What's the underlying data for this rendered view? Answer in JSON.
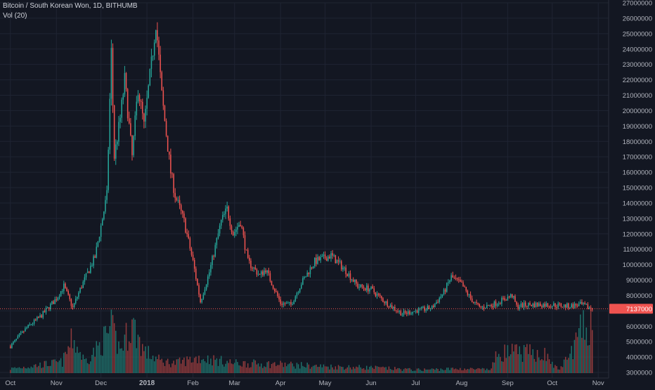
{
  "legend": {
    "symbol_line": "Bitcoin / South Korean Won, 1D, BITHUMB",
    "volume_line": "Vol (20)"
  },
  "colors": {
    "background": "#131722",
    "grid": "#1f2433",
    "axis_text": "#b2b5be",
    "up": "#26a69a",
    "down": "#ef5350",
    "price_line": "#ef5350",
    "up_volume": "#1f6f6a",
    "down_volume": "#8f3a3c"
  },
  "chart_data": {
    "type": "candlestick",
    "price_axis": {
      "min": 3000000,
      "max": 27000000,
      "ticks": [
        3000000,
        4000000,
        5000000,
        6000000,
        7000000,
        8000000,
        9000000,
        10000000,
        11000000,
        12000000,
        13000000,
        14000000,
        15000000,
        16000000,
        17000000,
        18000000,
        19000000,
        20000000,
        21000000,
        22000000,
        23000000,
        24000000,
        25000000,
        26000000,
        27000000
      ]
    },
    "time_axis": {
      "labels": [
        "Oct",
        "Nov",
        "Dec",
        "2018",
        "Feb",
        "Mar",
        "Apr",
        "May",
        "Jun",
        "Jul",
        "Aug",
        "Sep",
        "Oct",
        "Nov"
      ]
    },
    "last_price": 7137000,
    "last_price_label": "7137000",
    "grid": true,
    "price_path": [
      [
        "2017-10-01",
        4700000
      ],
      [
        "2017-10-12",
        5900000
      ],
      [
        "2017-10-22",
        6700000
      ],
      [
        "2017-11-01",
        7800000
      ],
      [
        "2017-11-06",
        8600000
      ],
      [
        "2017-11-12",
        7200000
      ],
      [
        "2017-11-17",
        8400000
      ],
      [
        "2017-11-27",
        10500000
      ],
      [
        "2017-12-01",
        12500000
      ],
      [
        "2017-12-05",
        14500000
      ],
      [
        "2017-12-08",
        23800000
      ],
      [
        "2017-12-10",
        17000000
      ],
      [
        "2017-12-14",
        19500000
      ],
      [
        "2017-12-17",
        22000000
      ],
      [
        "2017-12-22",
        17000000
      ],
      [
        "2017-12-26",
        21500000
      ],
      [
        "2017-12-30",
        19000000
      ],
      [
        "2018-01-04",
        23000000
      ],
      [
        "2018-01-07",
        25800000
      ],
      [
        "2018-01-11",
        21000000
      ],
      [
        "2018-01-17",
        16000000
      ],
      [
        "2018-01-20",
        14500000
      ],
      [
        "2018-01-26",
        12800000
      ],
      [
        "2018-02-01",
        10200000
      ],
      [
        "2018-02-06",
        7600000
      ],
      [
        "2018-02-12",
        9500000
      ],
      [
        "2018-02-20",
        12800000
      ],
      [
        "2018-02-24",
        13600000
      ],
      [
        "2018-02-28",
        12000000
      ],
      [
        "2018-03-05",
        12800000
      ],
      [
        "2018-03-10",
        10200000
      ],
      [
        "2018-03-18",
        9300000
      ],
      [
        "2018-03-22",
        9700000
      ],
      [
        "2018-04-01",
        7500000
      ],
      [
        "2018-04-08",
        7400000
      ],
      [
        "2018-04-15",
        8800000
      ],
      [
        "2018-04-24",
        10200000
      ],
      [
        "2018-05-05",
        10600000
      ],
      [
        "2018-05-15",
        9600000
      ],
      [
        "2018-05-23",
        8600000
      ],
      [
        "2018-06-01",
        8400000
      ],
      [
        "2018-06-10",
        7600000
      ],
      [
        "2018-06-22",
        6800000
      ],
      [
        "2018-07-01",
        7000000
      ],
      [
        "2018-07-12",
        7200000
      ],
      [
        "2018-07-20",
        8200000
      ],
      [
        "2018-07-25",
        9200000
      ],
      [
        "2018-08-01",
        8700000
      ],
      [
        "2018-08-07",
        7800000
      ],
      [
        "2018-08-13",
        7200000
      ],
      [
        "2018-08-22",
        7400000
      ],
      [
        "2018-09-04",
        8000000
      ],
      [
        "2018-09-07",
        7300000
      ],
      [
        "2018-09-15",
        7400000
      ],
      [
        "2018-09-25",
        7400000
      ],
      [
        "2018-10-05",
        7350000
      ],
      [
        "2018-10-12",
        7300000
      ],
      [
        "2018-10-20",
        7400000
      ],
      [
        "2018-10-28",
        7137000
      ]
    ],
    "volume_path": [
      [
        "2017-10-01",
        0.08
      ],
      [
        "2017-11-05",
        0.2
      ],
      [
        "2017-11-12",
        0.62
      ],
      [
        "2017-11-20",
        0.22
      ],
      [
        "2017-11-28",
        0.42
      ],
      [
        "2017-12-08",
        0.8
      ],
      [
        "2017-12-14",
        0.42
      ],
      [
        "2017-12-22",
        0.9
      ],
      [
        "2017-12-30",
        0.4
      ],
      [
        "2018-01-10",
        0.22
      ],
      [
        "2018-01-20",
        0.18
      ],
      [
        "2018-02-05",
        0.28
      ],
      [
        "2018-03-01",
        0.18
      ],
      [
        "2018-04-01",
        0.16
      ],
      [
        "2018-05-01",
        0.12
      ],
      [
        "2018-06-01",
        0.1
      ],
      [
        "2018-07-01",
        0.06
      ],
      [
        "2018-08-01",
        0.08
      ],
      [
        "2018-08-20",
        0.06
      ],
      [
        "2018-08-26",
        0.38
      ],
      [
        "2018-09-25",
        0.36
      ],
      [
        "2018-10-05",
        0.06
      ],
      [
        "2018-10-12",
        0.28
      ],
      [
        "2018-10-20",
        0.75
      ],
      [
        "2018-10-27",
        0.9
      ]
    ]
  }
}
